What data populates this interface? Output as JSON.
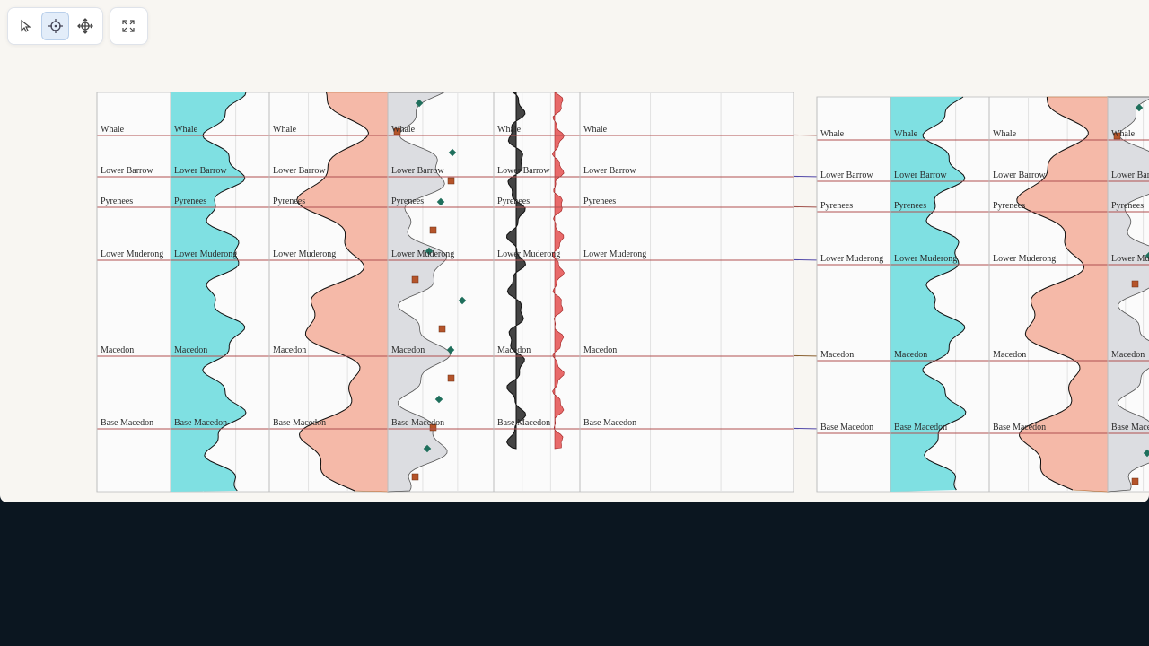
{
  "tops": [
    "Whale",
    "Lower Barrow",
    "Pyrenees",
    "Lower Muderong",
    "Macedon",
    "Base Macedon"
  ]
}
